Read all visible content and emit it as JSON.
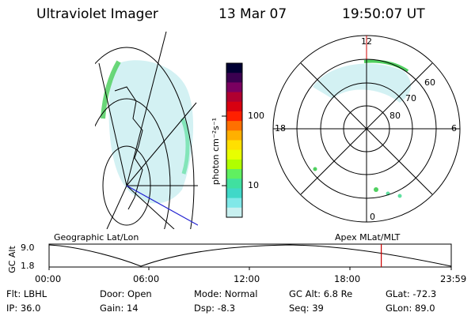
{
  "header": {
    "instrument": "Ultraviolet Imager",
    "date": "13 Mar 07",
    "time": "19:50:07 UT"
  },
  "colorbar": {
    "unit_label": "photon cm⁻²s⁻¹",
    "ticks": [
      "100",
      "10"
    ],
    "colors": [
      "#000033",
      "#3a0050",
      "#7a0060",
      "#b00030",
      "#d80010",
      "#ff2000",
      "#ff7000",
      "#ffb000",
      "#ffe000",
      "#e8ff00",
      "#b0ff00",
      "#60f060",
      "#40e0a0",
      "#40d8c8",
      "#80e8e8",
      "#c8f0f0"
    ]
  },
  "polar": {
    "mlt_labels": [
      "12",
      "18",
      "6",
      "0"
    ],
    "lat_labels": [
      "60",
      "70",
      "80"
    ]
  },
  "timeline": {
    "left_title": "Geographic Lat/Lon",
    "right_title": "Apex MLat/MLT",
    "yaxis_label": "GC Alt",
    "ytick_top": "9.0",
    "ytick_bottom": "1.8",
    "xticks": [
      "00:00",
      "06:00",
      "12:00",
      "18:00",
      "23:59"
    ],
    "current_time_fraction": 0.826,
    "marker_color": "#cc0000"
  },
  "info": {
    "flt": "Flt: LBHL",
    "ip": "IP: 36.0",
    "door": "Door: Open",
    "gain": "Gain: 14",
    "mode": "Mode: Normal",
    "dsp": "Dsp:   -8.3",
    "gcalt": "GC Alt: 6.8 Re",
    "seq": "Seq: 39",
    "glat": "GLat: -72.3",
    "glon": "GLon:  89.0"
  }
}
